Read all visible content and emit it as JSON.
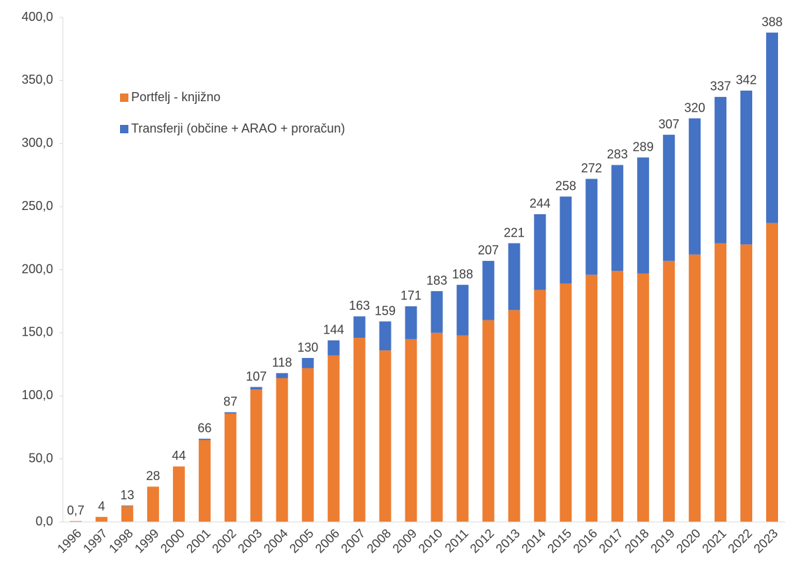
{
  "chart_data": {
    "type": "stacked_bar",
    "categories": [
      "1996",
      "1997",
      "1998",
      "1999",
      "2000",
      "2001",
      "2002",
      "2003",
      "2004",
      "2005",
      "2006",
      "2007",
      "2008",
      "2009",
      "2010",
      "2011",
      "2012",
      "2013",
      "2014",
      "2015",
      "2016",
      "2017",
      "2018",
      "2019",
      "2020",
      "2021",
      "2022",
      "2023"
    ],
    "series": [
      {
        "name": "Portfelj - knjižno",
        "color": "#ed7d31",
        "values": [
          0.7,
          4,
          12.5,
          28,
          44,
          65,
          86,
          105,
          114,
          122,
          132,
          146,
          136,
          145,
          150,
          148,
          160,
          168,
          184,
          189,
          196,
          199,
          197,
          207,
          212,
          221,
          220,
          237
        ]
      },
      {
        "name": "Transferji (občine + ARAO + proračun)",
        "color": "#4472c4",
        "values": [
          0,
          0,
          0.5,
          0,
          0,
          1,
          1,
          2,
          4,
          8,
          12,
          17,
          23,
          26,
          33,
          40,
          47,
          53,
          60,
          69,
          76,
          84,
          92,
          100,
          108,
          116,
          122,
          151
        ]
      }
    ],
    "total_labels": [
      "0,7",
      "4",
      "13",
      "28",
      "44",
      "66",
      "87",
      "107",
      "118",
      "130",
      "144",
      "163",
      "159",
      "171",
      "183",
      "188",
      "207",
      "221",
      "244",
      "258",
      "272",
      "283",
      "289",
      "307",
      "320",
      "337",
      "342",
      "388"
    ],
    "ylim": [
      0,
      400
    ],
    "yticks": [
      {
        "value": 0,
        "label": "0,0"
      },
      {
        "value": 50,
        "label": "50,0"
      },
      {
        "value": 100,
        "label": "100,0"
      },
      {
        "value": 150,
        "label": "150,0"
      },
      {
        "value": 200,
        "label": "200,0"
      },
      {
        "value": 250,
        "label": "250,0"
      },
      {
        "value": 300,
        "label": "300,0"
      },
      {
        "value": 350,
        "label": "350,0"
      },
      {
        "value": 400,
        "label": "400,0"
      }
    ],
    "grid": false,
    "legend": "upper left"
  }
}
